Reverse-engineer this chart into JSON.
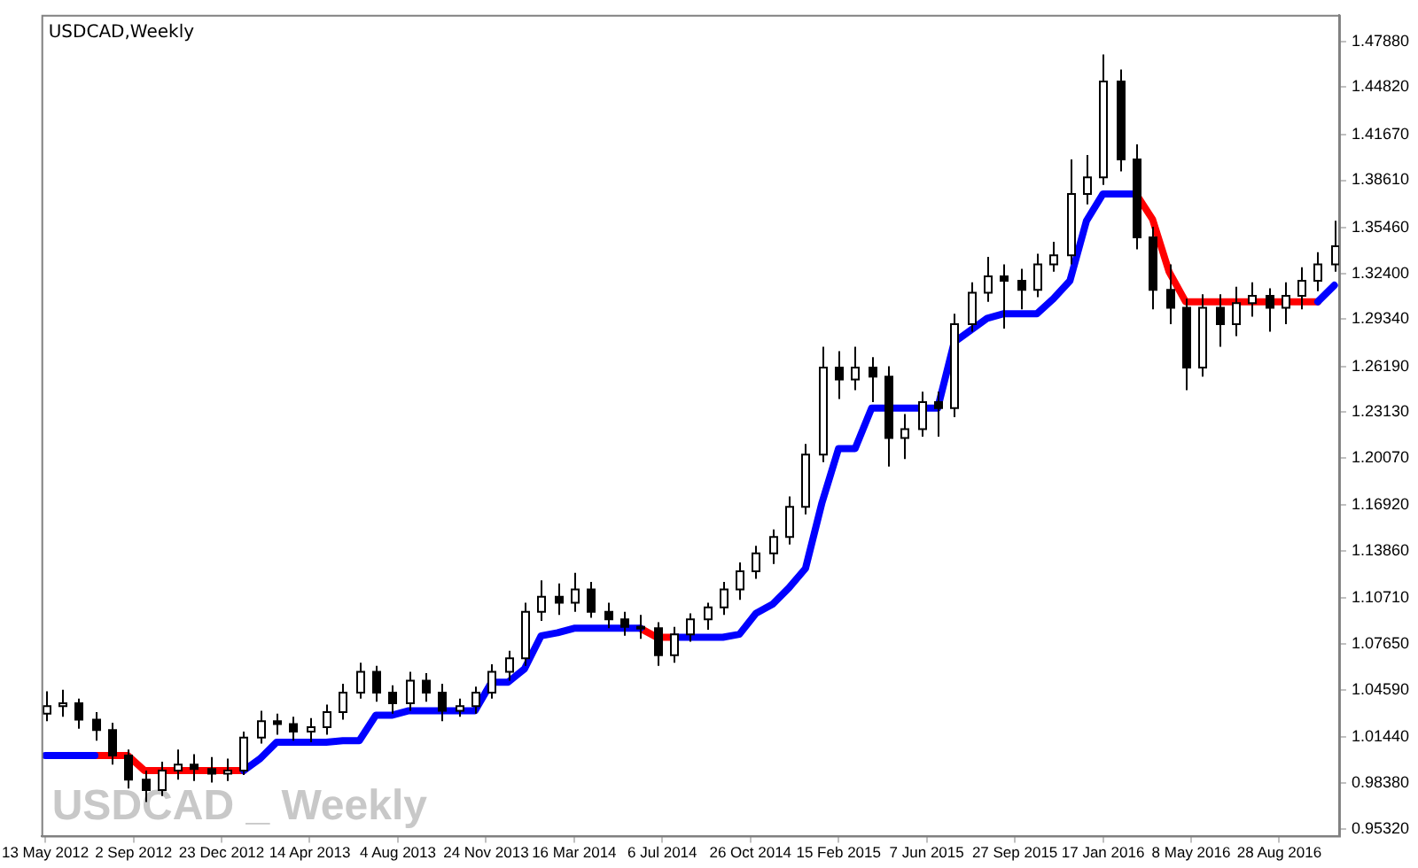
{
  "chart_data": {
    "type": "candlestick",
    "title": "USDCAD,Weekly",
    "annotations": [
      "USDCAD _ Weekly"
    ],
    "x": [
      "2012-05-13",
      "2012-06-03",
      "2012-06-24",
      "2012-07-15",
      "2012-08-05",
      "2012-08-26",
      "2012-09-16",
      "2012-10-07",
      "2012-10-28",
      "2012-11-18",
      "2012-12-09",
      "2012-12-30",
      "2013-01-20",
      "2013-02-10",
      "2013-03-03",
      "2013-03-24",
      "2013-04-14",
      "2013-05-05",
      "2013-05-26",
      "2013-06-16",
      "2013-07-07",
      "2013-07-28",
      "2013-08-18",
      "2013-09-08",
      "2013-09-29",
      "2013-10-20",
      "2013-11-10",
      "2013-12-01",
      "2013-12-22",
      "2014-01-12",
      "2014-02-02",
      "2014-02-23",
      "2014-03-16",
      "2014-04-06",
      "2014-04-27",
      "2014-05-18",
      "2014-06-08",
      "2014-06-29",
      "2014-07-20",
      "2014-08-10",
      "2014-08-31",
      "2014-09-21",
      "2014-10-12",
      "2014-11-02",
      "2014-11-23",
      "2014-12-14",
      "2015-01-04",
      "2015-01-25",
      "2015-02-15",
      "2015-03-08",
      "2015-03-29",
      "2015-04-19",
      "2015-05-10",
      "2015-05-31",
      "2015-06-21",
      "2015-07-12",
      "2015-08-02",
      "2015-08-23",
      "2015-09-13",
      "2015-10-04",
      "2015-10-25",
      "2015-11-15",
      "2015-12-06",
      "2015-12-27",
      "2016-01-17",
      "2016-02-07",
      "2016-02-28",
      "2016-03-20",
      "2016-04-10",
      "2016-05-01",
      "2016-05-22",
      "2016-06-12",
      "2016-07-03",
      "2016-07-24",
      "2016-08-14",
      "2016-09-04",
      "2016-09-25",
      "2016-10-16",
      "2016-11-06"
    ],
    "ohlc": [
      [
        1.03,
        1.045,
        1.025,
        1.035
      ],
      [
        1.035,
        1.046,
        1.028,
        1.037
      ],
      [
        1.037,
        1.04,
        1.02,
        1.026
      ],
      [
        1.026,
        1.031,
        1.012,
        1.019
      ],
      [
        1.019,
        1.024,
        0.996,
        1.002
      ],
      [
        1.002,
        1.006,
        0.98,
        0.986
      ],
      [
        0.986,
        0.992,
        0.971,
        0.979
      ],
      [
        0.979,
        0.998,
        0.975,
        0.992
      ],
      [
        0.992,
        1.006,
        0.986,
        0.996
      ],
      [
        0.996,
        1.003,
        0.985,
        0.993
      ],
      [
        0.993,
        1.001,
        0.984,
        0.99
      ],
      [
        0.99,
        1.0,
        0.985,
        0.992
      ],
      [
        0.992,
        1.018,
        0.989,
        1.014
      ],
      [
        1.014,
        1.032,
        1.01,
        1.025
      ],
      [
        1.025,
        1.03,
        1.016,
        1.023
      ],
      [
        1.023,
        1.028,
        1.012,
        1.018
      ],
      [
        1.018,
        1.027,
        1.011,
        1.021
      ],
      [
        1.021,
        1.036,
        1.016,
        1.031
      ],
      [
        1.031,
        1.05,
        1.026,
        1.044
      ],
      [
        1.044,
        1.064,
        1.04,
        1.058
      ],
      [
        1.058,
        1.062,
        1.038,
        1.044
      ],
      [
        1.044,
        1.049,
        1.03,
        1.037
      ],
      [
        1.037,
        1.058,
        1.032,
        1.052
      ],
      [
        1.052,
        1.057,
        1.038,
        1.044
      ],
      [
        1.044,
        1.05,
        1.025,
        1.032
      ],
      [
        1.032,
        1.04,
        1.028,
        1.035
      ],
      [
        1.035,
        1.048,
        1.03,
        1.044
      ],
      [
        1.044,
        1.063,
        1.04,
        1.058
      ],
      [
        1.058,
        1.072,
        1.052,
        1.067
      ],
      [
        1.067,
        1.104,
        1.062,
        1.098
      ],
      [
        1.098,
        1.119,
        1.092,
        1.108
      ],
      [
        1.108,
        1.117,
        1.096,
        1.104
      ],
      [
        1.104,
        1.124,
        1.098,
        1.113
      ],
      [
        1.113,
        1.118,
        1.094,
        1.098
      ],
      [
        1.098,
        1.104,
        1.087,
        1.093
      ],
      [
        1.093,
        1.098,
        1.082,
        1.088
      ],
      [
        1.088,
        1.096,
        1.08,
        1.087
      ],
      [
        1.087,
        1.091,
        1.062,
        1.069
      ],
      [
        1.069,
        1.088,
        1.064,
        1.083
      ],
      [
        1.083,
        1.097,
        1.078,
        1.093
      ],
      [
        1.093,
        1.104,
        1.086,
        1.101
      ],
      [
        1.101,
        1.118,
        1.096,
        1.113
      ],
      [
        1.113,
        1.131,
        1.106,
        1.125
      ],
      [
        1.125,
        1.142,
        1.12,
        1.137
      ],
      [
        1.137,
        1.153,
        1.13,
        1.148
      ],
      [
        1.148,
        1.175,
        1.143,
        1.168
      ],
      [
        1.168,
        1.21,
        1.163,
        1.203
      ],
      [
        1.203,
        1.275,
        1.198,
        1.261
      ],
      [
        1.261,
        1.272,
        1.24,
        1.253
      ],
      [
        1.253,
        1.275,
        1.246,
        1.261
      ],
      [
        1.261,
        1.268,
        1.238,
        1.255
      ],
      [
        1.255,
        1.262,
        1.195,
        1.214
      ],
      [
        1.214,
        1.23,
        1.2,
        1.22
      ],
      [
        1.22,
        1.245,
        1.215,
        1.238
      ],
      [
        1.238,
        1.245,
        1.215,
        1.234
      ],
      [
        1.234,
        1.297,
        1.228,
        1.29
      ],
      [
        1.29,
        1.318,
        1.285,
        1.311
      ],
      [
        1.311,
        1.335,
        1.305,
        1.322
      ],
      [
        1.322,
        1.33,
        1.287,
        1.319
      ],
      [
        1.319,
        1.327,
        1.3,
        1.313
      ],
      [
        1.313,
        1.337,
        1.308,
        1.33
      ],
      [
        1.33,
        1.345,
        1.325,
        1.336
      ],
      [
        1.336,
        1.4,
        1.33,
        1.377
      ],
      [
        1.377,
        1.403,
        1.37,
        1.388
      ],
      [
        1.388,
        1.47,
        1.383,
        1.452
      ],
      [
        1.452,
        1.46,
        1.392,
        1.4
      ],
      [
        1.4,
        1.41,
        1.34,
        1.348
      ],
      [
        1.348,
        1.355,
        1.3,
        1.313
      ],
      [
        1.313,
        1.33,
        1.29,
        1.301
      ],
      [
        1.301,
        1.307,
        1.246,
        1.261
      ],
      [
        1.261,
        1.31,
        1.255,
        1.301
      ],
      [
        1.301,
        1.31,
        1.275,
        1.29
      ],
      [
        1.29,
        1.315,
        1.282,
        1.304
      ],
      [
        1.304,
        1.318,
        1.295,
        1.309
      ],
      [
        1.309,
        1.314,
        1.285,
        1.301
      ],
      [
        1.301,
        1.318,
        1.29,
        1.309
      ],
      [
        1.309,
        1.328,
        1.3,
        1.319
      ],
      [
        1.319,
        1.338,
        1.312,
        1.33
      ],
      [
        1.33,
        1.359,
        1.325,
        1.342
      ]
    ],
    "series": [
      {
        "type": "line",
        "color": "#0000ff",
        "values": [
          1.002,
          1.002,
          1.002,
          1.002,
          null,
          null,
          null,
          null,
          null,
          null,
          null,
          null,
          0.992,
          1.0,
          1.011,
          1.011,
          1.011,
          1.011,
          1.012,
          1.012,
          1.029,
          1.029,
          1.032,
          1.032,
          1.032,
          1.032,
          1.032,
          1.051,
          1.051,
          1.06,
          1.082,
          1.084,
          1.087,
          1.087,
          1.087,
          1.087,
          1.087,
          null,
          1.081,
          1.081,
          1.081,
          1.081,
          1.083,
          1.097,
          1.103,
          1.114,
          1.127,
          1.171,
          1.207,
          1.207,
          1.234,
          1.234,
          1.234,
          1.234,
          1.234,
          1.278,
          1.286,
          1.294,
          1.297,
          1.297,
          1.297,
          1.307,
          1.319,
          1.359,
          1.377,
          1.377,
          1.377,
          null,
          null,
          null,
          null,
          null,
          null,
          null,
          null,
          null,
          null,
          1.305,
          1.316
        ]
      },
      {
        "type": "line",
        "color": "#ff0000",
        "values": [
          null,
          null,
          null,
          1.002,
          1.002,
          1.002,
          0.992,
          0.992,
          0.992,
          0.992,
          0.992,
          0.992,
          0.992,
          null,
          null,
          null,
          null,
          null,
          null,
          null,
          null,
          null,
          null,
          null,
          null,
          null,
          null,
          null,
          null,
          null,
          null,
          null,
          null,
          null,
          null,
          null,
          1.087,
          1.081,
          1.081,
          null,
          null,
          null,
          null,
          null,
          null,
          null,
          null,
          null,
          null,
          null,
          null,
          null,
          null,
          null,
          null,
          null,
          null,
          null,
          null,
          null,
          null,
          null,
          null,
          null,
          null,
          null,
          1.377,
          1.36,
          1.325,
          1.305,
          1.305,
          1.305,
          1.305,
          1.305,
          1.305,
          1.305,
          1.305,
          1.305,
          null
        ]
      }
    ],
    "xlim": [
      "2012-05-08",
      "2016-11-12"
    ],
    "xticks": [
      {
        "value": "2012-05-13",
        "label": "13 May 2012"
      },
      {
        "value": "2012-09-02",
        "label": "2 Sep 2012"
      },
      {
        "value": "2012-12-23",
        "label": "23 Dec 2012"
      },
      {
        "value": "2013-04-14",
        "label": "14 Apr 2013"
      },
      {
        "value": "2013-08-04",
        "label": "4 Aug 2013"
      },
      {
        "value": "2013-11-24",
        "label": "24 Nov 2013"
      },
      {
        "value": "2014-03-16",
        "label": "16 Mar 2014"
      },
      {
        "value": "2014-07-06",
        "label": "6 Jul 2014"
      },
      {
        "value": "2014-10-26",
        "label": "26 Oct 2014"
      },
      {
        "value": "2015-02-15",
        "label": "15 Feb 2015"
      },
      {
        "value": "2015-06-07",
        "label": "7 Jun 2015"
      },
      {
        "value": "2015-09-27",
        "label": "27 Sep 2015"
      },
      {
        "value": "2016-01-17",
        "label": "17 Jan 2016"
      },
      {
        "value": "2016-05-08",
        "label": "8 May 2016"
      },
      {
        "value": "2016-08-28",
        "label": "28 Aug 2016"
      }
    ],
    "ylim": [
      0.9485,
      1.4965
    ],
    "yticks": [
      {
        "value": 0.9532,
        "label": "0.95320"
      },
      {
        "value": 0.9838,
        "label": "0.98380"
      },
      {
        "value": 1.0144,
        "label": "1.01440"
      },
      {
        "value": 1.0459,
        "label": "1.04590"
      },
      {
        "value": 1.0765,
        "label": "1.07650"
      },
      {
        "value": 1.1071,
        "label": "1.10710"
      },
      {
        "value": 1.1386,
        "label": "1.13860"
      },
      {
        "value": 1.1692,
        "label": "1.16920"
      },
      {
        "value": 1.2007,
        "label": "1.20070"
      },
      {
        "value": 1.2313,
        "label": "1.23130"
      },
      {
        "value": 1.2619,
        "label": "1.26190"
      },
      {
        "value": 1.2934,
        "label": "1.29340"
      },
      {
        "value": 1.324,
        "label": "1.32400"
      },
      {
        "value": 1.3546,
        "label": "1.35460"
      },
      {
        "value": 1.3861,
        "label": "1.38610"
      },
      {
        "value": 1.4167,
        "label": "1.41670"
      },
      {
        "value": 1.4482,
        "label": "1.44820"
      },
      {
        "value": 1.4788,
        "label": "1.47880"
      }
    ],
    "grid": false,
    "legend": false
  }
}
